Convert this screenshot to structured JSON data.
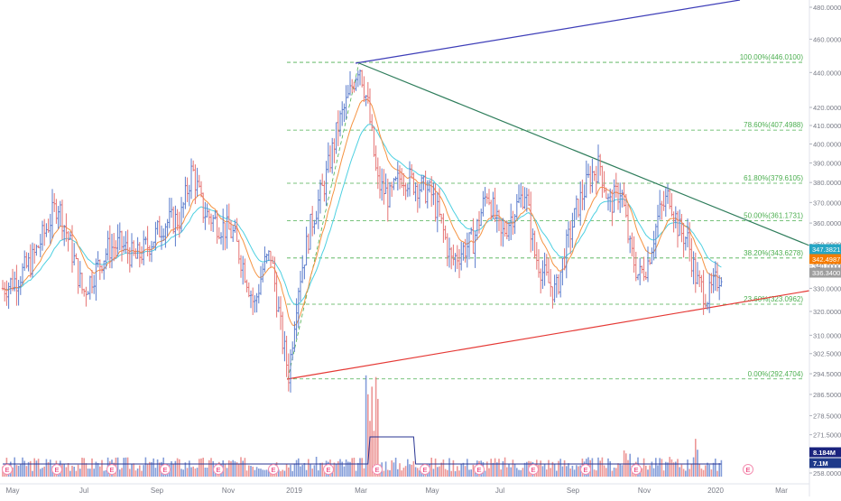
{
  "chart_data": {
    "type": "candlestick",
    "title": "",
    "xlabel": "",
    "ylabel": "",
    "ylim": [
      252.0,
      490.0
    ],
    "y_scale": "log",
    "grid": false,
    "x_ticks": [
      "May",
      "Jul",
      "Sep",
      "Nov",
      "2019",
      "Mar",
      "May",
      "Jul",
      "Sep",
      "Nov",
      "2020",
      "Mar"
    ],
    "y_ticks": [
      "480.0000",
      "460.0000",
      "440.0000",
      "420.0000",
      "410.0000",
      "400.0000",
      "390.0000",
      "380.0000",
      "370.0000",
      "360.0000",
      "350.0000",
      "340.0000",
      "330.0000",
      "320.0000",
      "310.0000",
      "302.5000",
      "294.5000",
      "286.5000",
      "278.5000",
      "271.5000",
      "264.5000",
      "258.0000"
    ],
    "fibonacci_levels": [
      {
        "label": "100.00%(446.0100)",
        "price": 446.01
      },
      {
        "label": "78.60%(407.4988)",
        "price": 407.4988
      },
      {
        "label": "61.80%(379.6105)",
        "price": 379.6105
      },
      {
        "label": "50.00%(361.1731)",
        "price": 361.1731
      },
      {
        "label": "38.20%(343.6278)",
        "price": 343.6278
      },
      {
        "label": "23.60%(323.0962)",
        "price": 323.0962
      },
      {
        "label": "0.00%(292.4704)",
        "price": 292.4704
      }
    ],
    "price_badges": [
      {
        "label": "347.3821",
        "color": "#26a6c4"
      },
      {
        "label": "342.4987",
        "color": "#f57c00"
      },
      {
        "label": "336.3400",
        "color": "#9e9e9e"
      }
    ],
    "volume_badges": [
      {
        "label": "8.184M",
        "color": "#1a237e"
      },
      {
        "label": "7.1M",
        "color": "#1e3a8a"
      }
    ],
    "earnings_markers": [
      "E",
      "E",
      "E",
      "E",
      "E",
      "E",
      "E",
      "E",
      "E",
      "E",
      "E",
      "E",
      "E",
      "E"
    ],
    "colors": {
      "up": "#5b7ccc",
      "down": "#e57373",
      "ema_fast": "#f59342",
      "ema_slow": "#4dd0e1",
      "resistance": "#3d3db8",
      "support": "#e53935",
      "downtrend": "#2e7d5b",
      "fib": "#4caf50",
      "volume_ma": "#283593"
    }
  }
}
